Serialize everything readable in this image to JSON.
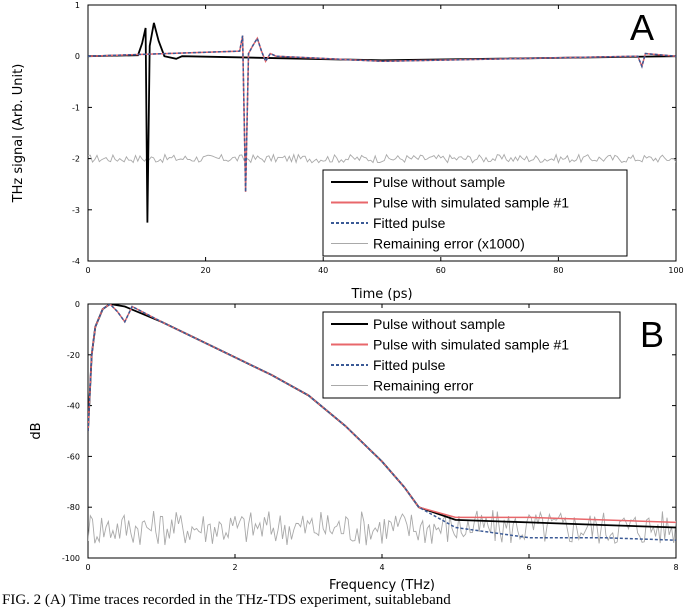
{
  "caption": "FIG. 2 (A) Time traces recorded in the THz-TDS experiment, suitableband",
  "chart_data": [
    {
      "panel": "A",
      "type": "line",
      "xlabel": "Time (ps)",
      "ylabel": "THz signal (Arb. Unit)",
      "xlim": [
        0,
        100
      ],
      "ylim": [
        -4,
        1
      ],
      "xticks": [
        0,
        20,
        40,
        60,
        80,
        100
      ],
      "yticks": [
        1,
        0,
        -1,
        -2,
        -3,
        -4
      ],
      "grid": false,
      "legend_position": "bottom-right",
      "colors": {
        "pulse": "#000000",
        "sample": "#e8676b",
        "fitted": "#3b5a96",
        "error": "#a9a9a9"
      },
      "series": [
        {
          "name": "Pulse without sample",
          "style": "solid",
          "color": "#000000",
          "points": [
            [
              0,
              0
            ],
            [
              8.5,
              0.02
            ],
            [
              9.2,
              0.25
            ],
            [
              9.8,
              0.55
            ],
            [
              10.1,
              -3.25
            ],
            [
              10.5,
              0.2
            ],
            [
              11.2,
              0.65
            ],
            [
              12,
              0.3
            ],
            [
              13,
              0
            ],
            [
              15,
              -0.05
            ],
            [
              16,
              0
            ],
            [
              50,
              -0.08
            ],
            [
              100,
              0
            ]
          ]
        },
        {
          "name": "Pulse with simulated sample #1",
          "style": "solid",
          "color": "#e8676b",
          "points": [
            [
              0,
              0
            ],
            [
              25.8,
              0.1
            ],
            [
              26.3,
              0.4
            ],
            [
              26.8,
              -2.65
            ],
            [
              27.3,
              0.05
            ],
            [
              28,
              0.2
            ],
            [
              28.8,
              0.35
            ],
            [
              29.5,
              0.1
            ],
            [
              30.2,
              -0.1
            ],
            [
              31,
              0.05
            ],
            [
              32,
              0
            ],
            [
              50,
              -0.1
            ],
            [
              93.5,
              0
            ],
            [
              94.2,
              -0.2
            ],
            [
              94.8,
              0.05
            ],
            [
              100,
              0
            ]
          ]
        },
        {
          "name": "Fitted pulse",
          "style": "dashed",
          "color": "#3b5a96",
          "points": [
            [
              0,
              0
            ],
            [
              25.8,
              0.1
            ],
            [
              26.3,
              0.4
            ],
            [
              26.8,
              -2.65
            ],
            [
              27.3,
              0.05
            ],
            [
              28,
              0.2
            ],
            [
              28.8,
              0.35
            ],
            [
              29.5,
              0.1
            ],
            [
              30.2,
              -0.1
            ],
            [
              31,
              0.05
            ],
            [
              32,
              0
            ],
            [
              50,
              -0.1
            ],
            [
              93.5,
              0
            ],
            [
              94.2,
              -0.2
            ],
            [
              94.8,
              0.05
            ],
            [
              100,
              0
            ]
          ]
        },
        {
          "name": "Remaining error (x1000)",
          "style": "solid",
          "color": "#a9a9a9",
          "mean": -2,
          "noise_amplitude": 0.08
        }
      ],
      "annotations": [
        "A"
      ]
    },
    {
      "panel": "B",
      "type": "line",
      "xlabel": "Frequency (THz)",
      "ylabel": "dB",
      "xlim": [
        0,
        8
      ],
      "ylim": [
        -100,
        0
      ],
      "xticks": [
        0,
        2,
        4,
        6,
        8
      ],
      "yticks": [
        0,
        -20,
        -40,
        -60,
        -80,
        -100
      ],
      "grid": false,
      "legend_position": "top-right",
      "series": [
        {
          "name": "Pulse without sample",
          "style": "solid",
          "color": "#000000",
          "points": [
            [
              0,
              -50
            ],
            [
              0.05,
              -20
            ],
            [
              0.1,
              -9
            ],
            [
              0.2,
              -2
            ],
            [
              0.3,
              0
            ],
            [
              0.5,
              -1
            ],
            [
              1,
              -7
            ],
            [
              1.5,
              -14
            ],
            [
              2,
              -21
            ],
            [
              2.5,
              -28
            ],
            [
              3,
              -36
            ],
            [
              3.5,
              -48
            ],
            [
              4,
              -62
            ],
            [
              4.3,
              -72
            ],
            [
              4.5,
              -80
            ],
            [
              5,
              -85
            ],
            [
              6,
              -86
            ],
            [
              7,
              -87
            ],
            [
              8,
              -88
            ]
          ]
        },
        {
          "name": "Pulse with simulated sample #1",
          "style": "solid",
          "color": "#e8676b",
          "points": [
            [
              0,
              -50
            ],
            [
              0.05,
              -20
            ],
            [
              0.1,
              -9
            ],
            [
              0.2,
              -2
            ],
            [
              0.3,
              0
            ],
            [
              0.4,
              -3
            ],
            [
              0.5,
              -7
            ],
            [
              0.6,
              -1
            ],
            [
              1,
              -7
            ],
            [
              1.5,
              -14
            ],
            [
              2,
              -21
            ],
            [
              2.5,
              -28
            ],
            [
              3,
              -36
            ],
            [
              3.5,
              -48
            ],
            [
              4,
              -62
            ],
            [
              4.3,
              -72
            ],
            [
              4.5,
              -80
            ],
            [
              5,
              -84
            ],
            [
              6,
              -84
            ],
            [
              7,
              -85
            ],
            [
              8,
              -86
            ]
          ]
        },
        {
          "name": "Fitted pulse",
          "style": "dashed",
          "color": "#3b5a96",
          "points": [
            [
              0,
              -50
            ],
            [
              0.05,
              -20
            ],
            [
              0.1,
              -9
            ],
            [
              0.2,
              -2
            ],
            [
              0.3,
              0
            ],
            [
              0.4,
              -3
            ],
            [
              0.5,
              -7
            ],
            [
              0.6,
              -1
            ],
            [
              1,
              -7
            ],
            [
              1.5,
              -14
            ],
            [
              2,
              -21
            ],
            [
              2.5,
              -28
            ],
            [
              3,
              -36
            ],
            [
              3.5,
              -48
            ],
            [
              4,
              -62
            ],
            [
              4.3,
              -72
            ],
            [
              4.5,
              -80
            ],
            [
              5,
              -88
            ],
            [
              6,
              -92
            ],
            [
              7,
              -92
            ],
            [
              8,
              -93
            ]
          ]
        },
        {
          "name": "Remaining error",
          "style": "solid",
          "color": "#a9a9a9",
          "mean": -88,
          "noise_amplitude": 7
        }
      ],
      "annotations": [
        "B"
      ]
    }
  ]
}
